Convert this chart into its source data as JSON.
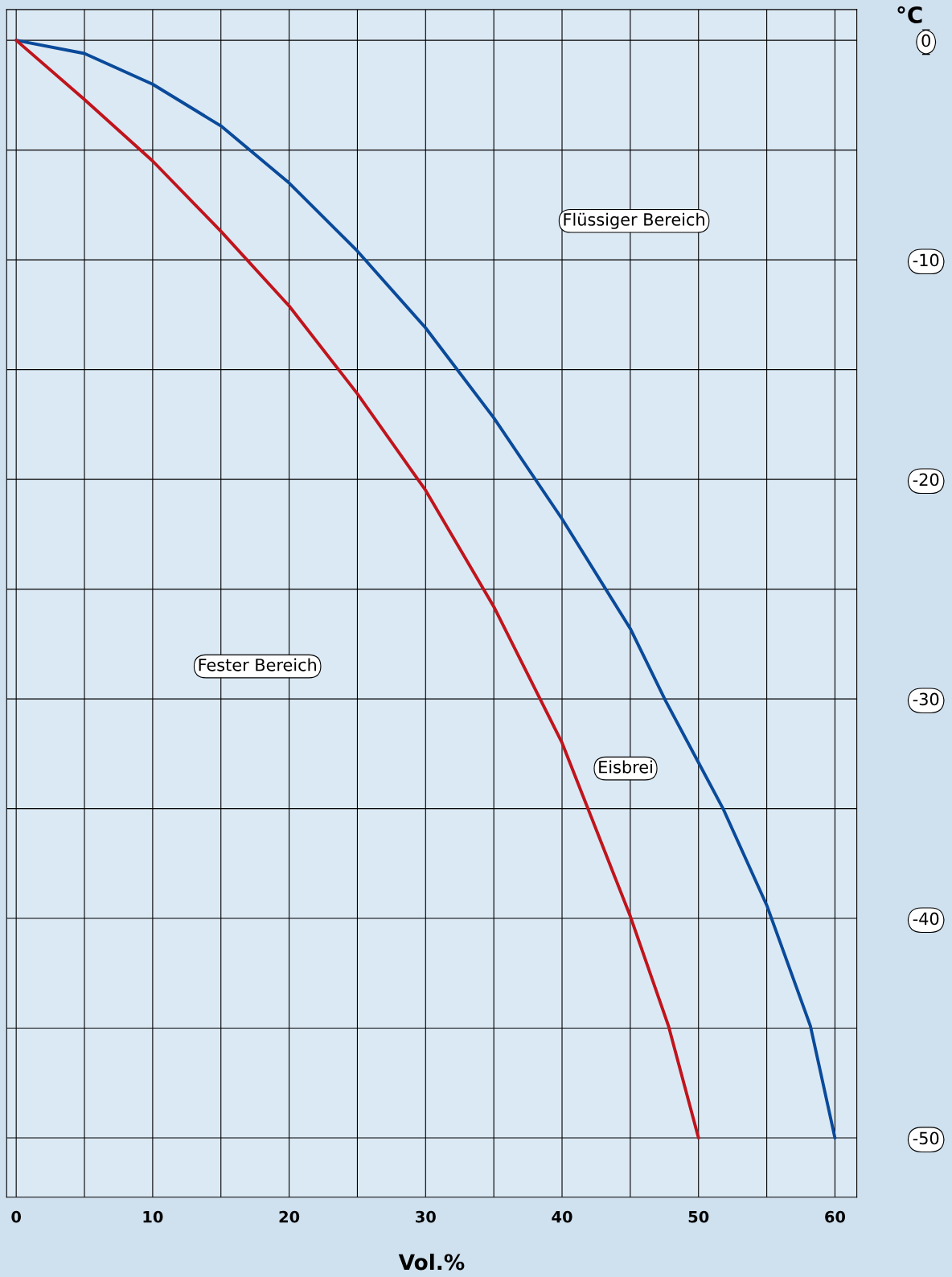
{
  "chart_data": {
    "type": "line",
    "xlabel": "Vol.%",
    "ylabel": "°C",
    "annotations": [
      "Flüssiger Bereich",
      "Fester Bereich",
      "Eisbrei"
    ],
    "series": [
      {
        "color": "#0a4a9a",
        "x": [
          0,
          5,
          10,
          15,
          20,
          25,
          30,
          35,
          40,
          45,
          47.6,
          50,
          51.8,
          55,
          58.2,
          60
        ],
        "values": [
          0,
          -0.6,
          -2.0,
          -3.9,
          -6.5,
          -9.6,
          -13.1,
          -17.2,
          -21.8,
          -26.8,
          -30.1,
          -32.9,
          -35,
          -39.4,
          -44.9,
          -50
        ]
      },
      {
        "color": "#c0141c",
        "x": [
          0,
          5,
          10,
          15,
          20,
          25,
          30,
          35,
          40,
          45,
          47.8,
          50
        ],
        "values": [
          0,
          -2.7,
          -5.5,
          -8.7,
          -12.1,
          -16.1,
          -20.5,
          -25.8,
          -32.0,
          -39.9,
          -44.9,
          -50
        ]
      }
    ],
    "xlim": [
      -0.7,
      61.6
    ],
    "ylim": [
      -52.7,
      1.4
    ],
    "xticks": [
      0,
      {
        "value": 5,
        "label": null
      },
      10,
      {
        "value": 15,
        "label": null
      },
      20,
      {
        "value": 25,
        "label": null
      },
      30,
      {
        "value": 35,
        "label": null
      },
      40,
      {
        "value": 45,
        "label": null
      },
      50,
      {
        "value": 55,
        "label": null
      },
      60
    ],
    "yticks": [
      0,
      {
        "value": -5,
        "label": null
      },
      -10,
      {
        "value": -15,
        "label": null
      },
      -20,
      {
        "value": -25,
        "label": null
      },
      -30,
      {
        "value": -35,
        "label": null
      },
      -40,
      {
        "value": -45,
        "label": null
      },
      -50
    ],
    "grid": true,
    "marker": "none",
    "line_style": "solid",
    "legend": false
  }
}
